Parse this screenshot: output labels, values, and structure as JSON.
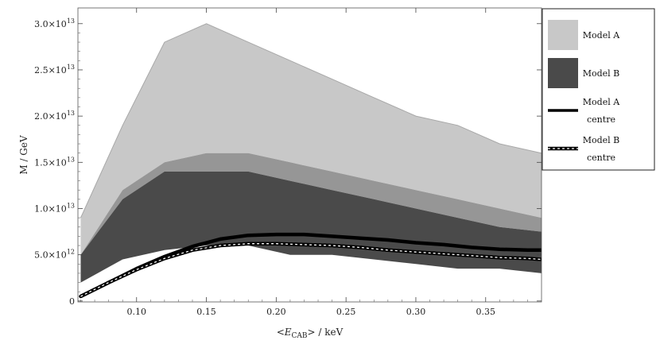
{
  "chart_data": {
    "type": "area",
    "xlabel_parts": [
      "<",
      "E",
      "CAB",
      ">",
      " / keV"
    ],
    "ylabel": "M / GeV",
    "xlim": [
      0.058,
      0.39
    ],
    "ylim": [
      -100000000000.0,
      31700000000000.0
    ],
    "xticks": [
      {
        "value": 0.1,
        "label": "0.10"
      },
      {
        "value": 0.15,
        "label": "0.15"
      },
      {
        "value": 0.2,
        "label": "0.20"
      },
      {
        "value": 0.25,
        "label": "0.25"
      },
      {
        "value": 0.3,
        "label": "0.30"
      },
      {
        "value": 0.35,
        "label": "0.35"
      }
    ],
    "yticks": [
      {
        "value": 0,
        "mantissa": "0",
        "exponent": ""
      },
      {
        "value": 5000000000000.0,
        "mantissa": "5.0×10",
        "exponent": "12"
      },
      {
        "value": 10000000000000.0,
        "mantissa": "1.0×10",
        "exponent": "13"
      },
      {
        "value": 15000000000000.0,
        "mantissa": "1.5×10",
        "exponent": "13"
      },
      {
        "value": 20000000000000.0,
        "mantissa": "2.0×10",
        "exponent": "13"
      },
      {
        "value": 25000000000000.0,
        "mantissa": "2.5×10",
        "exponent": "13"
      },
      {
        "value": 30000000000000.0,
        "mantissa": "3.0×10",
        "exponent": "13"
      }
    ],
    "grid": false,
    "legend_position": "right",
    "series": [
      {
        "name": "Model A",
        "kind": "band",
        "color": "#c8c8c8",
        "x": [
          0.06,
          0.09,
          0.12,
          0.15,
          0.18,
          0.21,
          0.24,
          0.27,
          0.3,
          0.33,
          0.36,
          0.39
        ],
        "upper": [
          9000000000000.0,
          19000000000000.0,
          28000000000000.0,
          30000000000000.0,
          28000000000000.0,
          26000000000000.0,
          24000000000000.0,
          22000000000000.0,
          20000000000000.0,
          19000000000000.0,
          17000000000000.0,
          16000000000000.0
        ],
        "lower": [
          5000000000000.0,
          12000000000000.0,
          15000000000000.0,
          16000000000000.0,
          16000000000000.0,
          15000000000000.0,
          14000000000000.0,
          13000000000000.0,
          12000000000000.0,
          11000000000000.0,
          10000000000000.0,
          9000000000000.0
        ]
      },
      {
        "name": "Model A / Model B overlap",
        "kind": "band",
        "color": "#969696",
        "x": [
          0.06,
          0.09,
          0.12,
          0.15,
          0.18,
          0.21,
          0.24,
          0.27,
          0.3,
          0.33,
          0.36,
          0.39
        ],
        "upper": [
          5000000000000.0,
          12000000000000.0,
          15000000000000.0,
          16000000000000.0,
          16000000000000.0,
          15000000000000.0,
          14000000000000.0,
          13000000000000.0,
          12000000000000.0,
          11000000000000.0,
          10000000000000.0,
          9000000000000.0
        ],
        "lower": [
          5000000000000.0,
          11000000000000.0,
          14000000000000.0,
          14000000000000.0,
          14000000000000.0,
          13000000000000.0,
          12000000000000.0,
          11000000000000.0,
          10000000000000.0,
          9000000000000.0,
          8000000000000.0,
          7500000000000.0
        ]
      },
      {
        "name": "Model B",
        "kind": "band",
        "color": "#4a4a4a",
        "x": [
          0.06,
          0.09,
          0.12,
          0.15,
          0.18,
          0.21,
          0.24,
          0.27,
          0.3,
          0.33,
          0.36,
          0.39
        ],
        "upper": [
          5000000000000.0,
          11000000000000.0,
          14000000000000.0,
          14000000000000.0,
          14000000000000.0,
          13000000000000.0,
          12000000000000.0,
          11000000000000.0,
          10000000000000.0,
          9000000000000.0,
          8000000000000.0,
          7500000000000.0
        ],
        "lower": [
          2000000000000.0,
          4500000000000.0,
          5500000000000.0,
          6000000000000.0,
          6000000000000.0,
          5000000000000.0,
          5000000000000.0,
          4500000000000.0,
          4000000000000.0,
          3500000000000.0,
          3500000000000.0,
          3000000000000.0
        ]
      },
      {
        "name": "Model A centre",
        "kind": "line",
        "color": "#000000",
        "style": "solid",
        "x": [
          0.06,
          0.08,
          0.1,
          0.12,
          0.14,
          0.16,
          0.18,
          0.2,
          0.22,
          0.24,
          0.26,
          0.28,
          0.3,
          0.32,
          0.34,
          0.36,
          0.38,
          0.39
        ],
        "y": [
          500000000000.0,
          2000000000000.0,
          3500000000000.0,
          4800000000000.0,
          5900000000000.0,
          6700000000000.0,
          7100000000000.0,
          7200000000000.0,
          7200000000000.0,
          7000000000000.0,
          6800000000000.0,
          6600000000000.0,
          6300000000000.0,
          6100000000000.0,
          5800000000000.0,
          5600000000000.0,
          5500000000000.0,
          5500000000000.0
        ]
      },
      {
        "name": "Model B centre",
        "kind": "line",
        "color": "#000000",
        "style": "dashed",
        "x": [
          0.06,
          0.08,
          0.1,
          0.12,
          0.14,
          0.16,
          0.18,
          0.2,
          0.22,
          0.24,
          0.26,
          0.28,
          0.3,
          0.32,
          0.34,
          0.36,
          0.38,
          0.39
        ],
        "y": [
          500000000000.0,
          2000000000000.0,
          3400000000000.0,
          4600000000000.0,
          5500000000000.0,
          6000000000000.0,
          6200000000000.0,
          6200000000000.0,
          6100000000000.0,
          6000000000000.0,
          5800000000000.0,
          5500000000000.0,
          5300000000000.0,
          5100000000000.0,
          4900000000000.0,
          4700000000000.0,
          4600000000000.0,
          4500000000000.0
        ]
      }
    ],
    "legend": [
      {
        "lines": [
          "Model A"
        ],
        "kind": "swatch",
        "color": "#c8c8c8"
      },
      {
        "lines": [
          "Model B"
        ],
        "kind": "swatch",
        "color": "#4a4a4a"
      },
      {
        "lines": [
          "Model A",
          "centre"
        ],
        "kind": "line",
        "style": "solid"
      },
      {
        "lines": [
          "Model B",
          "centre"
        ],
        "kind": "line",
        "style": "dashed"
      }
    ]
  }
}
